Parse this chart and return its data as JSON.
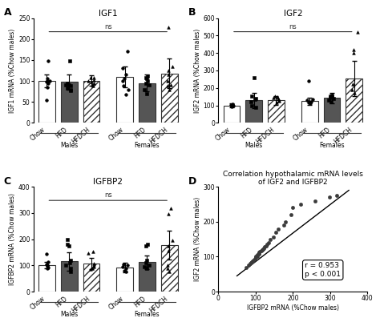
{
  "panel_A": {
    "title": "IGF1",
    "ylabel": "IGF1 mRNA (%Chow males)",
    "ylim": [
      0,
      250
    ],
    "yticks": [
      0,
      50,
      100,
      150,
      200,
      250
    ],
    "bar_means": [
      100,
      98,
      101,
      110,
      95,
      118
    ],
    "bar_errors": [
      15,
      18,
      12,
      25,
      20,
      35
    ],
    "scatter_points": [
      [
        85,
        95,
        105,
        100,
        98,
        147,
        55,
        100
      ],
      [
        80,
        90,
        148,
        78,
        90,
        95,
        82,
        88
      ],
      [
        90,
        95,
        108,
        102,
        100,
        88,
        107,
        98
      ],
      [
        68,
        105,
        115,
        130,
        170,
        88,
        80,
        100
      ],
      [
        70,
        80,
        90,
        95,
        105,
        108,
        112,
        100
      ],
      [
        80,
        88,
        100,
        115,
        125,
        135,
        228,
        90
      ]
    ]
  },
  "panel_B": {
    "title": "IGF2",
    "ylabel": "IGF2 mRNA (%Chow males)",
    "ylim": [
      0,
      600
    ],
    "yticks": [
      0,
      100,
      200,
      300,
      400,
      500,
      600
    ],
    "bar_means": [
      100,
      128,
      130,
      125,
      142,
      255
    ],
    "bar_errors": [
      10,
      45,
      25,
      20,
      30,
      100
    ],
    "scatter_points": [
      [
        95,
        100,
        102,
        98,
        105,
        108
      ],
      [
        90,
        120,
        135,
        140,
        260,
        155,
        100
      ],
      [
        115,
        125,
        130,
        140,
        145,
        148,
        155
      ],
      [
        110,
        118,
        122,
        128,
        135,
        240
      ],
      [
        120,
        130,
        138,
        145,
        150,
        155,
        160
      ],
      [
        170,
        190,
        220,
        400,
        420,
        520
      ]
    ]
  },
  "panel_C": {
    "title": "IGFBP2",
    "ylabel": "IGFBP2 mRNA (%Chow males)",
    "ylim": [
      0,
      400
    ],
    "yticks": [
      0,
      100,
      200,
      300,
      400
    ],
    "bar_means": [
      102,
      115,
      108,
      92,
      112,
      178
    ],
    "bar_errors": [
      12,
      35,
      22,
      18,
      25,
      55
    ],
    "scatter_points": [
      [
        88,
        92,
        98,
        100,
        105,
        112,
        145
      ],
      [
        75,
        100,
        110,
        120,
        175,
        180,
        200,
        90
      ],
      [
        90,
        95,
        100,
        108,
        148,
        152,
        85
      ],
      [
        75,
        80,
        88,
        95,
        100,
        105
      ],
      [
        88,
        95,
        100,
        110,
        120,
        175,
        182
      ],
      [
        75,
        88,
        100,
        155,
        175,
        195,
        298,
        318
      ]
    ]
  },
  "panel_D": {
    "title": "Correlation hypothalamic mRNA levels\nof IGF2 and IGFBP2",
    "xlabel": "IGFBP2 mRNA (%Chow males)",
    "ylabel": "IGF2 mRNA (%Chow males)",
    "xlim": [
      0,
      400
    ],
    "ylim": [
      0,
      300
    ],
    "xticks": [
      0,
      100,
      200,
      300,
      400
    ],
    "yticks": [
      0,
      100,
      200,
      300
    ],
    "r_value": "r = 0.953",
    "p_value": "p < 0.001",
    "scatter_x": [
      75,
      80,
      85,
      88,
      90,
      92,
      95,
      98,
      100,
      100,
      102,
      105,
      105,
      108,
      110,
      110,
      112,
      115,
      118,
      120,
      122,
      125,
      128,
      130,
      135,
      140,
      148,
      155,
      160,
      175,
      180,
      195,
      200,
      220,
      260,
      298,
      318
    ],
    "scatter_y": [
      70,
      75,
      80,
      82,
      85,
      88,
      90,
      95,
      98,
      100,
      100,
      102,
      105,
      108,
      110,
      112,
      115,
      118,
      120,
      122,
      125,
      128,
      130,
      135,
      140,
      148,
      155,
      170,
      180,
      190,
      200,
      220,
      240,
      250,
      260,
      270,
      275
    ],
    "line_x": [
      50,
      350
    ],
    "line_y": [
      45,
      290
    ],
    "dot_color": "#3a3a3a"
  },
  "bar_colors": [
    "white",
    "#555555",
    "white"
  ],
  "bar_hatches": [
    null,
    null,
    "////"
  ],
  "group_labels": [
    "Males",
    "Females"
  ],
  "x_labels": [
    "Chow",
    "HFD",
    "HFDCH",
    "Chow",
    "HFD",
    "HFDCH"
  ],
  "ns_line_color": "#333333",
  "scatter_markers": [
    "o",
    "s",
    "^"
  ]
}
